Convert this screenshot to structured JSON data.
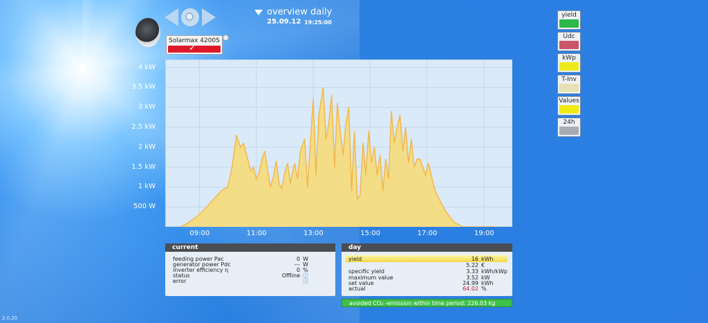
{
  "header": {
    "title": "overview daily",
    "date": "25.09.12",
    "time": "19:25:00"
  },
  "inverter": {
    "name": "Solarmax 4200S",
    "check": "✓"
  },
  "version": "2.0.20",
  "legend": [
    {
      "label": "yield",
      "color": "#2db84a"
    },
    {
      "label": "Udc",
      "color": "#c9566a"
    },
    {
      "label": "kWp",
      "color": "#ecea1c"
    },
    {
      "label": "T-Inv",
      "color": "#e7e1b5"
    },
    {
      "label": "Values",
      "color": "#f1ea15"
    },
    {
      "label": "24h",
      "color": "#a8adb5"
    }
  ],
  "chart_data": {
    "type": "area",
    "y_tick_labels": [
      "4 kW",
      "3.5 kW",
      "3 kW",
      "2.5 kW",
      "2 kW",
      "1.5 kW",
      "1 kW",
      "500 W"
    ],
    "x_tick_labels": [
      "09:00",
      "11:00",
      "13:00",
      "15:00",
      "17:00",
      "19:00"
    ],
    "x_unit": "hour",
    "ylim": [
      0,
      4200
    ],
    "xlim": [
      7.8,
      20.0
    ],
    "series": [
      {
        "x": [
          8.35,
          8.6,
          8.9,
          9.2,
          9.5,
          9.8,
          10.0,
          10.15,
          10.3,
          10.45,
          10.55,
          10.7,
          10.8,
          10.9,
          11.0,
          11.1,
          11.2,
          11.3,
          11.4,
          11.5,
          11.6,
          11.7,
          11.8,
          11.9,
          12.0,
          12.1,
          12.2,
          12.35,
          12.45,
          12.55,
          12.7,
          12.8,
          12.9,
          13.0,
          13.1,
          13.2,
          13.35,
          13.45,
          13.55,
          13.65,
          13.75,
          13.85,
          13.95,
          14.05,
          14.15,
          14.25,
          14.35,
          14.45,
          14.55,
          14.65,
          14.75,
          14.85,
          14.95,
          15.05,
          15.15,
          15.25,
          15.35,
          15.45,
          15.55,
          15.65,
          15.75,
          15.85,
          15.95,
          16.05,
          16.15,
          16.25,
          16.35,
          16.45,
          16.55,
          16.65,
          16.75,
          16.85,
          16.95,
          17.05,
          17.15,
          17.25,
          17.35,
          17.5,
          17.65,
          17.8,
          17.95,
          18.1,
          18.25,
          18.4,
          18.55,
          18.7,
          18.85,
          19.0,
          19.15,
          19.3,
          19.5
        ],
        "y": [
          0,
          100,
          250,
          450,
          700,
          920,
          1000,
          1500,
          2300,
          2000,
          2100,
          1700,
          1400,
          1500,
          1200,
          1350,
          1700,
          1900,
          1400,
          1000,
          1250,
          1650,
          1100,
          950,
          1350,
          1600,
          1100,
          1600,
          1200,
          1900,
          2200,
          1000,
          2100,
          3200,
          1300,
          2800,
          3500,
          2200,
          2600,
          3300,
          1500,
          3100,
          2400,
          1800,
          2600,
          3000,
          900,
          2400,
          700,
          800,
          2100,
          1300,
          2400,
          1600,
          2000,
          1300,
          1800,
          900,
          1700,
          1200,
          2900,
          2100,
          2500,
          2800,
          1900,
          2500,
          1600,
          2200,
          1500,
          1700,
          1700,
          1500,
          1300,
          1600,
          1300,
          1000,
          800,
          600,
          400,
          250,
          120,
          60,
          0,
          0,
          0,
          0,
          0,
          0,
          0,
          0,
          0
        ]
      }
    ],
    "fill_color": "#f6dc7a",
    "line_color": "#f3b84a",
    "plot_bg": "#dbeaf8",
    "grid": true
  },
  "current": {
    "title": "current",
    "rows": [
      {
        "label": "feeding power Pac",
        "value": "0",
        "unit": "W"
      },
      {
        "label": "generator power Pdc",
        "value": "---",
        "unit": "W"
      },
      {
        "label": "inverter efficiency η",
        "value": "0",
        "unit": "%"
      },
      {
        "label": "status",
        "value": "Offline",
        "unit": "ⓘ"
      },
      {
        "label": "error",
        "value": "",
        "unit": "ⓘ"
      }
    ]
  },
  "day": {
    "title": "day",
    "rows": [
      {
        "label": "yield",
        "value": "16",
        "unit": "kWh"
      },
      {
        "label": "",
        "value": "5.22",
        "unit": "€"
      },
      {
        "label": "specific yield",
        "value": "3.33",
        "unit": "kWh/kWp"
      },
      {
        "label": "maximum value",
        "value": "3.52",
        "unit": "kW"
      },
      {
        "label": "set value",
        "value": "24.99",
        "unit": "kWh"
      },
      {
        "label": "actual",
        "value": "64.02",
        "unit": "%"
      }
    ],
    "actual_color": "#c0203a"
  },
  "co2": {
    "text": "avoided CO₂ -emission within time period: 226.03 kg"
  }
}
